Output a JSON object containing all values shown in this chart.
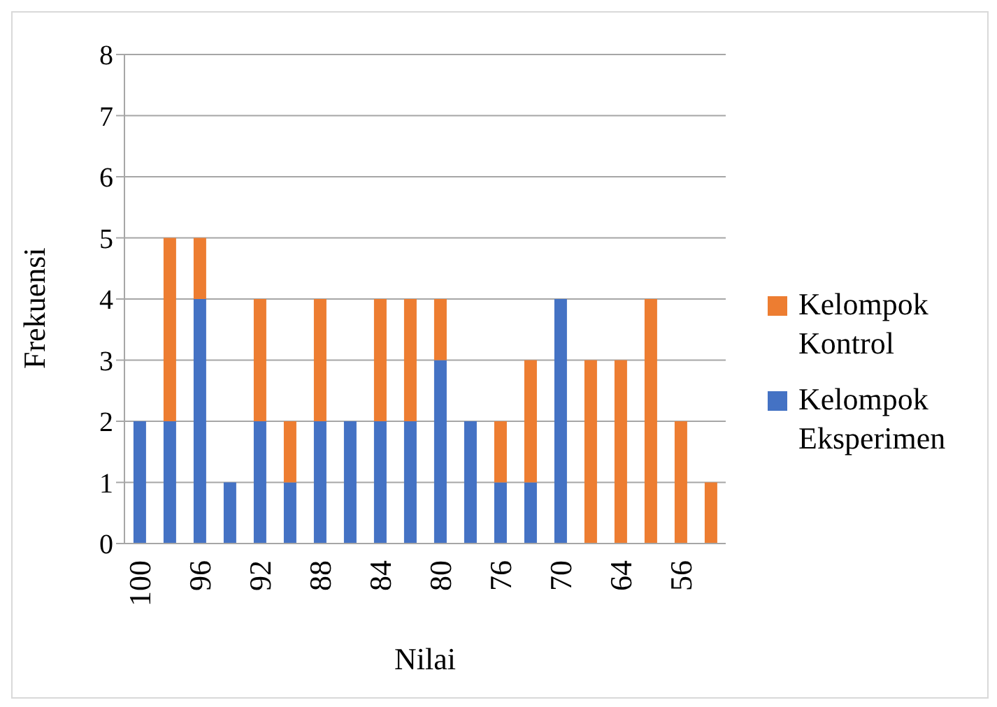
{
  "chart_data": {
    "type": "bar",
    "stacked": true,
    "xlabel": "Nilai",
    "ylabel": "Frekuensi",
    "categories": [
      "100",
      null,
      "96",
      null,
      "92",
      null,
      "88",
      null,
      "84",
      null,
      "80",
      null,
      "76",
      null,
      "70",
      null,
      "64",
      null,
      "56",
      null
    ],
    "series": [
      {
        "name": "Kelompok Eksperimen",
        "color": "#4472c4",
        "values": [
          2,
          2,
          4,
          1,
          2,
          1,
          2,
          2,
          2,
          2,
          3,
          2,
          1,
          1,
          4,
          0,
          0,
          0,
          0,
          0
        ]
      },
      {
        "name": "Kelompok Kontrol",
        "color": "#ed7d31",
        "values": [
          0,
          3,
          1,
          0,
          2,
          1,
          2,
          0,
          2,
          2,
          1,
          0,
          1,
          2,
          0,
          3,
          3,
          4,
          2,
          1
        ]
      }
    ],
    "ylim": [
      0,
      8
    ],
    "yticks": [
      0,
      1,
      2,
      3,
      4,
      5,
      6,
      7,
      8
    ],
    "grid": "y",
    "legend": "right"
  }
}
